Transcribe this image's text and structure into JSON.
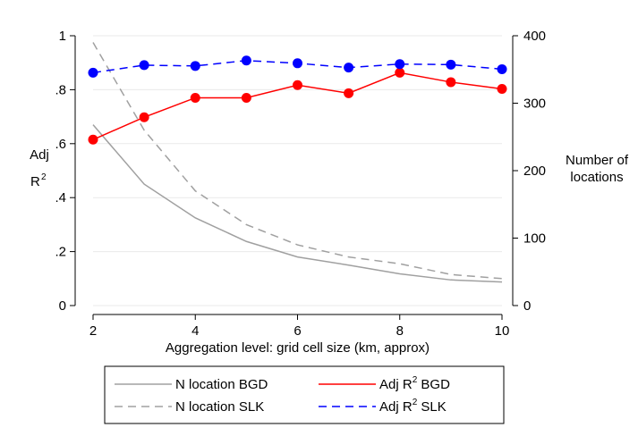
{
  "chart_data": {
    "type": "line",
    "xlabel": "Aggregation level: grid cell size (km, approx)",
    "ylabel_left": [
      "Adj",
      "R",
      "2"
    ],
    "ylabel_right": [
      "Number of",
      "locations"
    ],
    "x": [
      2,
      3,
      4,
      5,
      6,
      7,
      8,
      9,
      10
    ],
    "x_ticks": [
      "2",
      "4",
      "6",
      "8",
      "10"
    ],
    "y_left_ticks": [
      "0",
      ".2",
      ".4",
      ".6",
      ".8",
      "1"
    ],
    "y_right_ticks": [
      "0",
      "100",
      "200",
      "300",
      "400"
    ],
    "xlim": [
      2,
      10
    ],
    "ylim_left": [
      0,
      1
    ],
    "ylim_right": [
      0,
      400
    ],
    "grid": true,
    "legend_position": "bottom",
    "series": [
      {
        "name": "N location BGD",
        "axis": "right",
        "color": "#a0a0a0",
        "dash": "solid",
        "markers": false,
        "values": [
          268,
          180,
          130,
          95,
          72,
          60,
          47,
          38,
          35
        ]
      },
      {
        "name": "N location SLK",
        "axis": "right",
        "color": "#a0a0a0",
        "dash": "dashed",
        "markers": false,
        "values": [
          390,
          260,
          170,
          120,
          90,
          72,
          62,
          46,
          40
        ]
      },
      {
        "name": "Adj R² BGD",
        "axis": "left",
        "color": "#ff0000",
        "dash": "solid",
        "markers": true,
        "values": [
          0.615,
          0.698,
          0.77,
          0.77,
          0.817,
          0.787,
          0.863,
          0.828,
          0.803
        ]
      },
      {
        "name": "Adj R² SLK",
        "axis": "left",
        "color": "#0000ff",
        "dash": "dashed",
        "markers": true,
        "values": [
          0.863,
          0.891,
          0.888,
          0.908,
          0.898,
          0.882,
          0.895,
          0.893,
          0.876
        ]
      }
    ],
    "legend": [
      {
        "label": "N location BGD",
        "superscript": ""
      },
      {
        "label": "Adj R",
        "superscript": "2",
        "suffix": " BGD"
      },
      {
        "label": "N location SLK",
        "superscript": ""
      },
      {
        "label": "Adj R",
        "superscript": "2",
        "suffix": " SLK"
      }
    ]
  }
}
